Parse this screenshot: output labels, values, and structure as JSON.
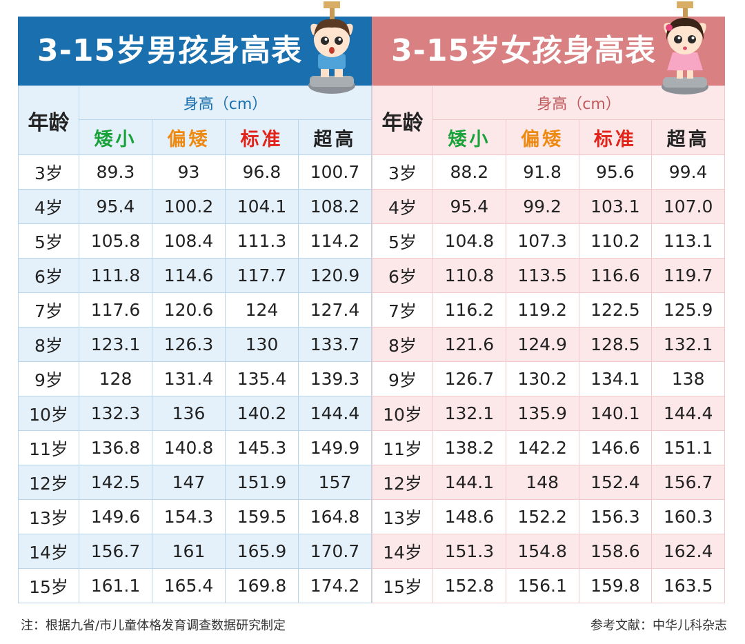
{
  "boys": {
    "title": "3-15岁男孩身高表",
    "age_header": "年龄",
    "unit_header": "身高（cm）",
    "categories": [
      "矮小",
      "偏矮",
      "标准",
      "超高"
    ],
    "rows": [
      {
        "age": "3岁",
        "values": [
          "89.3",
          "93",
          "96.8",
          "100.7"
        ]
      },
      {
        "age": "4岁",
        "values": [
          "95.4",
          "100.2",
          "104.1",
          "108.2"
        ]
      },
      {
        "age": "5岁",
        "values": [
          "105.8",
          "108.4",
          "111.3",
          "114.2"
        ]
      },
      {
        "age": "6岁",
        "values": [
          "111.8",
          "114.6",
          "117.7",
          "120.9"
        ]
      },
      {
        "age": "7岁",
        "values": [
          "117.6",
          "120.6",
          "124",
          "127.4"
        ]
      },
      {
        "age": "8岁",
        "values": [
          "123.1",
          "126.3",
          "130",
          "133.7"
        ]
      },
      {
        "age": "9岁",
        "values": [
          "128",
          "131.4",
          "135.4",
          "139.3"
        ]
      },
      {
        "age": "10岁",
        "values": [
          "132.3",
          "136",
          "140.2",
          "144.4"
        ]
      },
      {
        "age": "11岁",
        "values": [
          "136.8",
          "140.8",
          "145.3",
          "149.9"
        ]
      },
      {
        "age": "12岁",
        "values": [
          "142.5",
          "147",
          "151.9",
          "157"
        ]
      },
      {
        "age": "13岁",
        "values": [
          "149.6",
          "154.3",
          "159.5",
          "164.8"
        ]
      },
      {
        "age": "14岁",
        "values": [
          "156.7",
          "161",
          "165.9",
          "170.7"
        ]
      },
      {
        "age": "15岁",
        "values": [
          "161.1",
          "165.4",
          "169.8",
          "174.2"
        ]
      }
    ]
  },
  "girls": {
    "title": "3-15岁女孩身高表",
    "age_header": "年龄",
    "unit_header": "身高（cm）",
    "categories": [
      "矮小",
      "偏矮",
      "标准",
      "超高"
    ],
    "rows": [
      {
        "age": "3岁",
        "values": [
          "88.2",
          "91.8",
          "95.6",
          "99.4"
        ]
      },
      {
        "age": "4岁",
        "values": [
          "95.4",
          "99.2",
          "103.1",
          "107.0"
        ]
      },
      {
        "age": "5岁",
        "values": [
          "104.8",
          "107.3",
          "110.2",
          "113.1"
        ]
      },
      {
        "age": "6岁",
        "values": [
          "110.8",
          "113.5",
          "116.6",
          "119.7"
        ]
      },
      {
        "age": "7岁",
        "values": [
          "116.2",
          "119.2",
          "122.5",
          "125.9"
        ]
      },
      {
        "age": "8岁",
        "values": [
          "121.6",
          "124.9",
          "128.5",
          "132.1"
        ]
      },
      {
        "age": "9岁",
        "values": [
          "126.7",
          "130.2",
          "134.1",
          "138"
        ]
      },
      {
        "age": "10岁",
        "values": [
          "132.1",
          "135.9",
          "140.1",
          "144.4"
        ]
      },
      {
        "age": "11岁",
        "values": [
          "138.2",
          "142.2",
          "146.6",
          "151.1"
        ]
      },
      {
        "age": "12岁",
        "values": [
          "144.1",
          "148",
          "152.4",
          "156.7"
        ]
      },
      {
        "age": "13岁",
        "values": [
          "148.6",
          "152.2",
          "156.3",
          "160.3"
        ]
      },
      {
        "age": "14岁",
        "values": [
          "151.3",
          "154.8",
          "158.6",
          "162.4"
        ]
      },
      {
        "age": "15岁",
        "values": [
          "152.8",
          "156.1",
          "159.8",
          "163.5"
        ]
      }
    ]
  },
  "footer": {
    "note": "注：根据九省/市儿童体格发育调查数据研究制定",
    "reference": "参考文献：中华儿科杂志"
  },
  "colors": {
    "boys_banner": "#1a6fae",
    "girls_banner": "#d98082",
    "short": "#19a23a",
    "below": "#ee8a13",
    "standard": "#e2231a",
    "tall": "#222222"
  }
}
